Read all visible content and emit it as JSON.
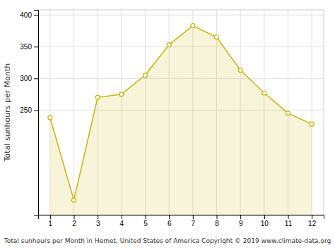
{
  "chart_data": {
    "type": "area",
    "x": [
      1,
      2,
      3,
      4,
      5,
      6,
      7,
      8,
      9,
      10,
      11,
      12
    ],
    "values": [
      238,
      108,
      270,
      275,
      305,
      353,
      383,
      365,
      313,
      277,
      245,
      228
    ],
    "color": "#C8B400",
    "marker": "circle",
    "xlabel": "Total sunhours per Month in Hemet, United States of America Copyright © 2019 www.climate-data.org",
    "ylabel": "Total sunhours per Month",
    "xlim": [
      0.5,
      12.5
    ],
    "ylim": [
      85,
      408
    ],
    "xticks": [
      1,
      2,
      3,
      4,
      5,
      6,
      7,
      8,
      9,
      10,
      11,
      12
    ],
    "yticks": [
      250,
      300,
      350,
      400
    ],
    "grid": true
  }
}
